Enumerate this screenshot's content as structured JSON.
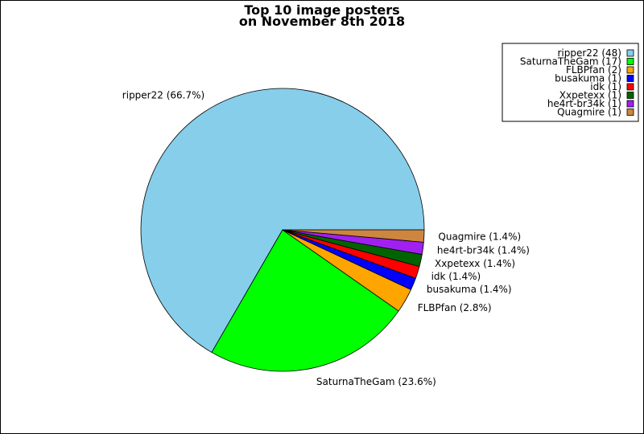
{
  "chart_data": {
    "type": "pie",
    "title": [
      "Top 10 image posters",
      "on November 8th 2018"
    ],
    "legend_position": "top-right",
    "slices": [
      {
        "label": "ripper22",
        "value": 48,
        "pct_label": "ripper22 (66.7%)",
        "legend": "ripper22 (48)",
        "color": "#87CEEB"
      },
      {
        "label": "SaturnaTheGam",
        "value": 17,
        "pct_label": "SaturnaTheGam (23.6%)",
        "legend": "SaturnaTheGam (17)",
        "color": "#00FF00"
      },
      {
        "label": "FLBPfan",
        "value": 2,
        "pct_label": "FLBPfan (2.8%)",
        "legend": "FLBPfan (2)",
        "color": "#FFA500"
      },
      {
        "label": "busakuma",
        "value": 1,
        "pct_label": "busakuma (1.4%)",
        "legend": "busakuma (1)",
        "color": "#0000FF"
      },
      {
        "label": "idk",
        "value": 1,
        "pct_label": "idk (1.4%)",
        "legend": "idk (1)",
        "color": "#FF0000"
      },
      {
        "label": "Xxpetexx",
        "value": 1,
        "pct_label": "Xxpetexx (1.4%)",
        "legend": "Xxpetexx (1)",
        "color": "#006400"
      },
      {
        "label": "he4rt-br34k",
        "value": 1,
        "pct_label": "he4rt-br34k (1.4%)",
        "legend": "he4rt-br34k (1)",
        "color": "#A020F0"
      },
      {
        "label": "Quagmire",
        "value": 1,
        "pct_label": "Quagmire (1.4%)",
        "legend": "Quagmire (1)",
        "color": "#CD853F"
      }
    ]
  }
}
